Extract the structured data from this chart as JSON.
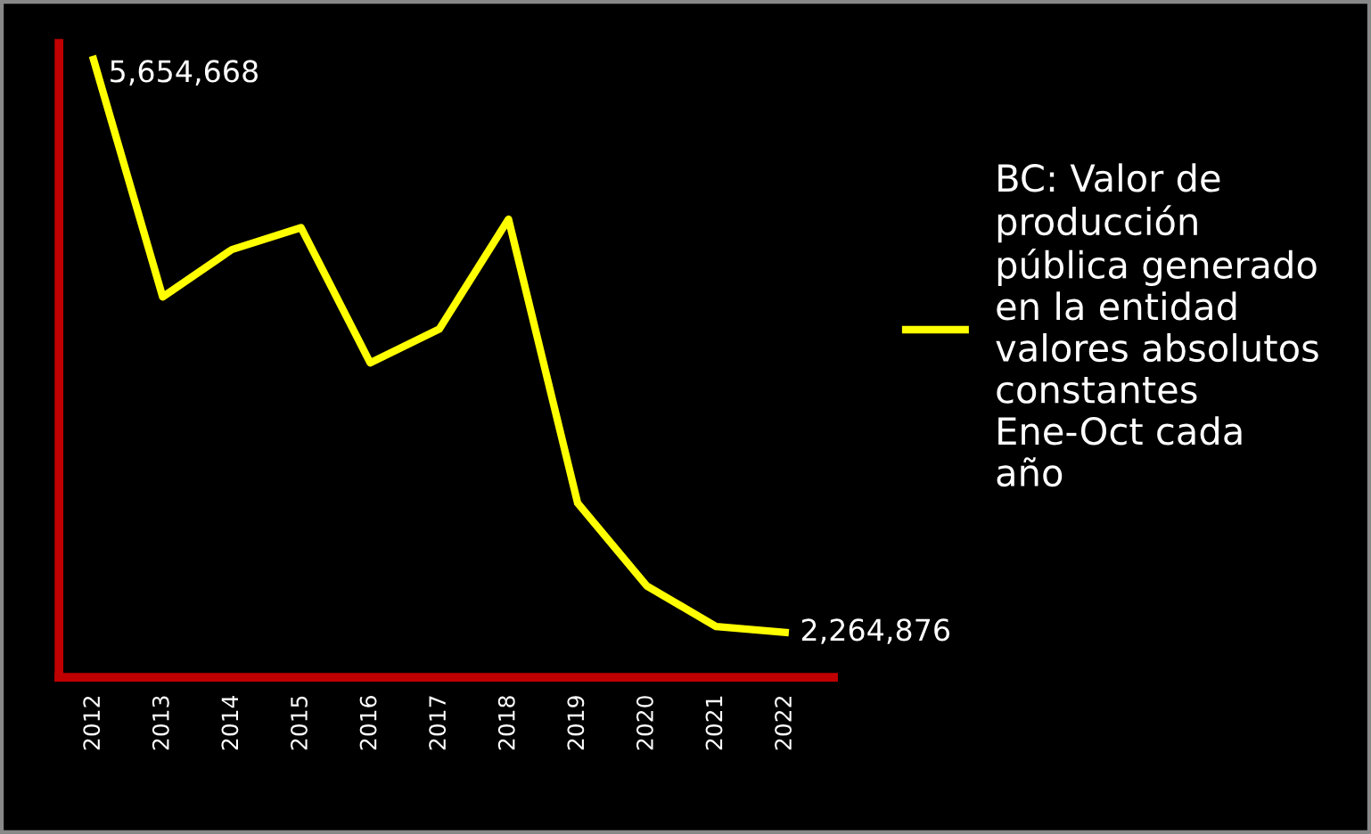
{
  "chart_data": {
    "type": "line",
    "categories": [
      "2012",
      "2013",
      "2014",
      "2015",
      "2016",
      "2017",
      "2018",
      "2019",
      "2020",
      "2021",
      "2022"
    ],
    "series": [
      {
        "name": "BC: Valor de producción pública generado en la entidad valores absolutos constantes Ene-Oct cada año",
        "color": "#ffff00",
        "values": [
          5654668,
          4250000,
          4530000,
          4660000,
          3860000,
          4060000,
          4710000,
          3030000,
          2540000,
          2300000,
          2264876
        ],
        "value_labels": [
          "5,654,668",
          null,
          null,
          null,
          null,
          null,
          null,
          null,
          null,
          null,
          "2,264,876"
        ]
      }
    ],
    "ylim": [
      2000000,
      5750000
    ],
    "tick_labels": "x",
    "legend": "right",
    "grid": false,
    "marker": "none",
    "line_style": "solid"
  }
}
